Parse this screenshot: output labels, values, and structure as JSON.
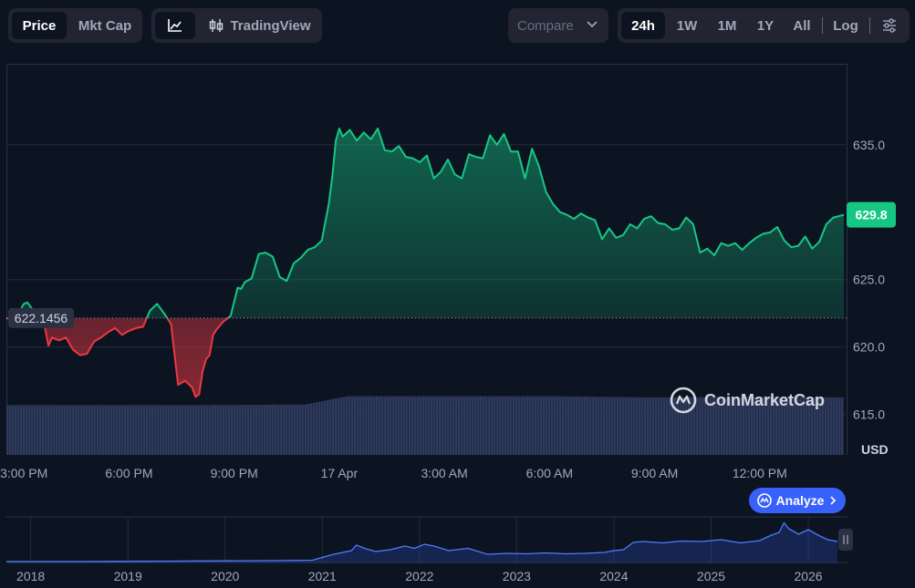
{
  "toolbar": {
    "left_tabs": [
      "Price",
      "Mkt Cap"
    ],
    "tradingview_label": "TradingView",
    "compare_label": "Compare",
    "ranges": [
      "24h",
      "1W",
      "1M",
      "1Y",
      "All"
    ],
    "log_label": "Log",
    "active_tab": "Price",
    "active_range": "24h"
  },
  "colors": {
    "background": "#0d1421",
    "up": "#16c784",
    "down": "#ea3943",
    "volume": "#2e3a5c",
    "brand_blue": "#3861fb"
  },
  "watermark": "CoinMarketCap",
  "analyze_label": "Analyze",
  "chart_data": [
    {
      "type": "area",
      "currency_label": "USD",
      "yticks": [
        615.0,
        620.0,
        625.0,
        635.0
      ],
      "ylim": [
        612,
        641
      ],
      "baseline": {
        "label": "622.1456",
        "value": 622.1456
      },
      "current": {
        "label": "629.8",
        "value": 629.8
      },
      "x_ticks": [
        "3:00 PM",
        "6:00 PM",
        "9:00 PM",
        "17 Apr",
        "3:00 AM",
        "6:00 AM",
        "9:00 AM",
        "12:00 PM"
      ],
      "x_tick_hours": [
        1,
        4,
        7,
        10,
        13,
        16,
        19,
        22
      ],
      "x_range_hours": [
        0.5,
        24.4
      ],
      "series": [
        {
          "x_hours": [
            0.5,
            0.8,
            1.0,
            1.1,
            1.3,
            1.5,
            1.7,
            1.8,
            2.0,
            2.2,
            2.4,
            2.6,
            2.8,
            3.0,
            3.2,
            3.4,
            3.6,
            3.8,
            4.0,
            4.2,
            4.4,
            4.6,
            4.8,
            5.0,
            5.2,
            5.4,
            5.6,
            5.8,
            5.9,
            6.0,
            6.1,
            6.2,
            6.3,
            6.4,
            6.5,
            6.7,
            6.9,
            7.1,
            7.2,
            7.3,
            7.5,
            7.7,
            7.9,
            8.1,
            8.3,
            8.5,
            8.7,
            8.9,
            9.1,
            9.3,
            9.5,
            9.7,
            9.8,
            9.9,
            10.0,
            10.1,
            10.3,
            10.5,
            10.7,
            10.9,
            11.1,
            11.3,
            11.5,
            11.7,
            11.9,
            12.1,
            12.3,
            12.5,
            12.7,
            12.9,
            13.1,
            13.3,
            13.5,
            13.7,
            13.9,
            14.1,
            14.3,
            14.5,
            14.7,
            14.9,
            15.1,
            15.3,
            15.5,
            15.7,
            15.9,
            16.1,
            16.3,
            16.5,
            16.7,
            16.9,
            17.1,
            17.3,
            17.5,
            17.7,
            17.9,
            18.1,
            18.3,
            18.5,
            18.7,
            18.9,
            19.1,
            19.3,
            19.5,
            19.7,
            19.9,
            20.1,
            20.3,
            20.5,
            20.7,
            20.9,
            21.1,
            21.3,
            21.5,
            21.7,
            21.9,
            22.1,
            22.3,
            22.5,
            22.7,
            22.9,
            23.1,
            23.3,
            23.5,
            23.7,
            23.9,
            24.1,
            24.4
          ],
          "values": [
            622.1,
            622.3,
            623.2,
            623.3,
            622.6,
            622.8,
            620.1,
            620.7,
            620.5,
            620.7,
            619.8,
            619.4,
            619.5,
            620.4,
            620.7,
            621.1,
            621.4,
            620.9,
            621.2,
            621.4,
            621.5,
            622.7,
            623.2,
            622.5,
            621.7,
            617.2,
            617.5,
            617.0,
            616.3,
            616.5,
            618.2,
            619.1,
            619.4,
            620.9,
            621.3,
            621.9,
            622.3,
            624.4,
            624.3,
            624.8,
            625.1,
            626.9,
            627.0,
            626.7,
            625.2,
            624.9,
            626.2,
            626.6,
            627.2,
            627.4,
            627.9,
            630.6,
            632.6,
            635.3,
            636.2,
            635.6,
            636.1,
            635.3,
            635.9,
            635.4,
            636.2,
            634.6,
            634.5,
            634.9,
            634.1,
            634.0,
            633.7,
            634.2,
            632.5,
            633.0,
            633.9,
            632.8,
            632.5,
            634.3,
            634.1,
            634.0,
            635.7,
            635.0,
            635.8,
            634.5,
            634.5,
            632.5,
            634.7,
            633.4,
            631.5,
            630.6,
            630.0,
            629.8,
            629.5,
            629.9,
            629.6,
            629.4,
            628.0,
            628.8,
            628.1,
            628.3,
            629.1,
            628.8,
            629.5,
            629.7,
            629.2,
            629.1,
            628.7,
            628.8,
            629.6,
            629.1,
            627.0,
            627.3,
            626.8,
            627.7,
            627.5,
            627.7,
            627.2,
            627.7,
            628.1,
            628.4,
            628.5,
            628.9,
            627.9,
            627.4,
            627.5,
            628.2,
            627.3,
            627.8,
            629.1,
            629.6,
            629.8
          ]
        }
      ],
      "volume": {
        "x_hours": [
          0.5,
          3.0,
          6.0,
          9.0,
          10.2,
          13.0,
          16.0,
          19.0,
          22.0,
          24.2
        ],
        "values": [
          0.78,
          0.78,
          0.78,
          0.79,
          0.92,
          0.92,
          0.92,
          0.9,
          0.91,
          0.9
        ]
      }
    },
    {
      "type": "area",
      "x_labels": [
        "2018",
        "2019",
        "2020",
        "2021",
        "2022",
        "2023",
        "2024",
        "2025",
        "2026"
      ],
      "x_range": [
        2017.75,
        2026.3
      ],
      "series": [
        {
          "x": [
            2017.75,
            2018.5,
            2019.5,
            2020.5,
            2020.9,
            2021.1,
            2021.3,
            2021.35,
            2021.45,
            2021.55,
            2021.7,
            2021.85,
            2021.95,
            2022.05,
            2022.15,
            2022.3,
            2022.5,
            2022.7,
            2022.9,
            2023.1,
            2023.3,
            2023.5,
            2023.7,
            2023.9,
            2024.0,
            2024.1,
            2024.2,
            2024.3,
            2024.5,
            2024.7,
            2024.9,
            2025.1,
            2025.3,
            2025.5,
            2025.6,
            2025.7,
            2025.75,
            2025.8,
            2025.9,
            2026.0,
            2026.1,
            2026.2,
            2026.3
          ],
          "values": [
            0.02,
            0.02,
            0.03,
            0.04,
            0.05,
            0.17,
            0.26,
            0.38,
            0.3,
            0.24,
            0.28,
            0.36,
            0.31,
            0.4,
            0.36,
            0.26,
            0.31,
            0.18,
            0.2,
            0.19,
            0.21,
            0.19,
            0.2,
            0.22,
            0.26,
            0.28,
            0.44,
            0.46,
            0.43,
            0.47,
            0.46,
            0.5,
            0.43,
            0.48,
            0.58,
            0.66,
            0.87,
            0.74,
            0.62,
            0.72,
            0.6,
            0.5,
            0.46
          ]
        }
      ]
    }
  ]
}
